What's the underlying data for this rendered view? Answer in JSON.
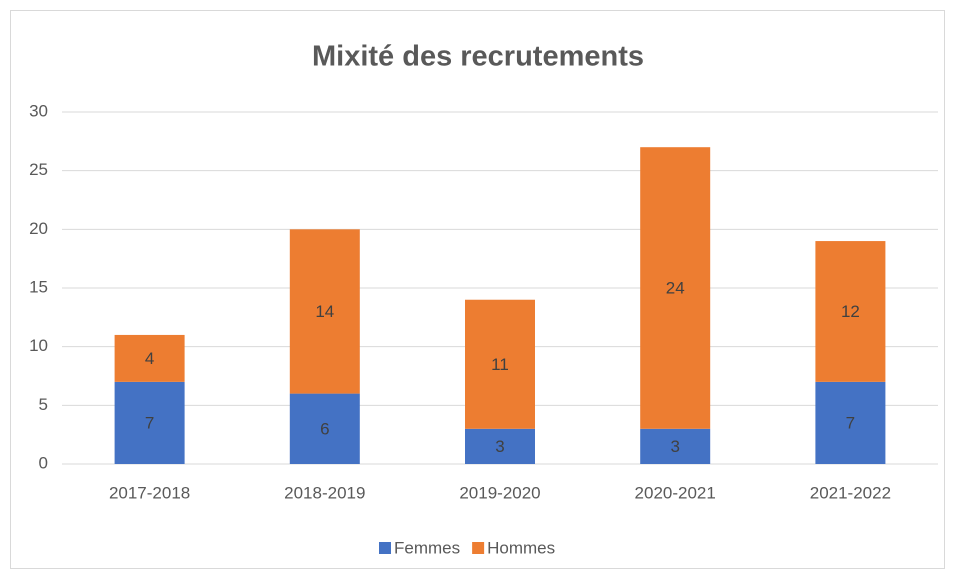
{
  "chart_data": {
    "type": "bar",
    "stacked": true,
    "title": "Mixité des recrutements",
    "categories": [
      "2017-2018",
      "2018-2019",
      "2019-2020",
      "2020-2021",
      "2021-2022"
    ],
    "series": [
      {
        "name": "Femmes",
        "color": "#4472c4",
        "values": [
          7,
          6,
          3,
          3,
          7
        ]
      },
      {
        "name": "Hommes",
        "color": "#ed7d31",
        "values": [
          4,
          14,
          11,
          24,
          12
        ]
      }
    ],
    "ylim": [
      0,
      30
    ],
    "yticks": [
      0,
      5,
      10,
      15,
      20,
      25,
      30
    ],
    "grid": true,
    "legend": "bottom",
    "data_labels": true
  }
}
